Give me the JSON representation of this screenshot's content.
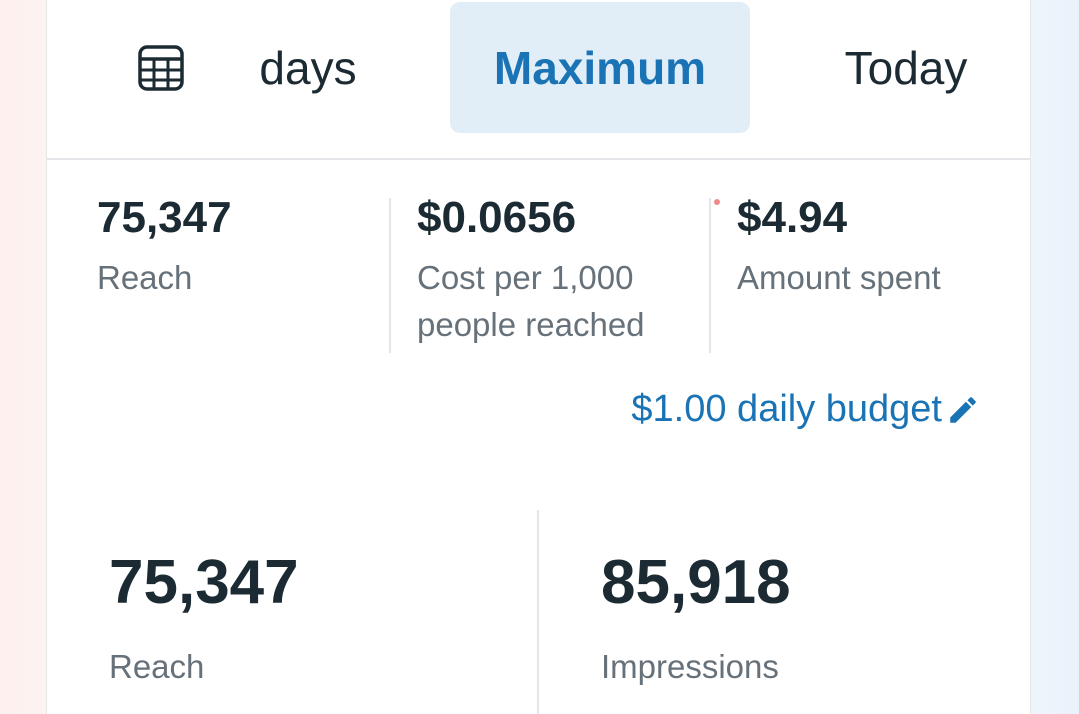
{
  "tabs": {
    "calendar_icon": "calendar-table-icon",
    "days": "days",
    "maximum": "Maximum",
    "today": "Today",
    "selected": "Maximum"
  },
  "metrics": [
    {
      "value": "75,347",
      "label": "Reach"
    },
    {
      "value": "$0.0656",
      "label": "Cost per 1,000 people reached"
    },
    {
      "value": "$4.94",
      "label": "Amount spent"
    }
  ],
  "budget": {
    "text": "$1.00 daily budget",
    "icon": "pencil-icon"
  },
  "summary": [
    {
      "value": "75,347",
      "label": "Reach"
    },
    {
      "value": "85,918",
      "label": "Impressions"
    }
  ],
  "colors": {
    "accent": "#1a73b5",
    "selected_tab_bg": "#e1edf7",
    "text_primary": "#1c2b33",
    "text_secondary": "#67717a",
    "divider": "#e3e5e8"
  }
}
